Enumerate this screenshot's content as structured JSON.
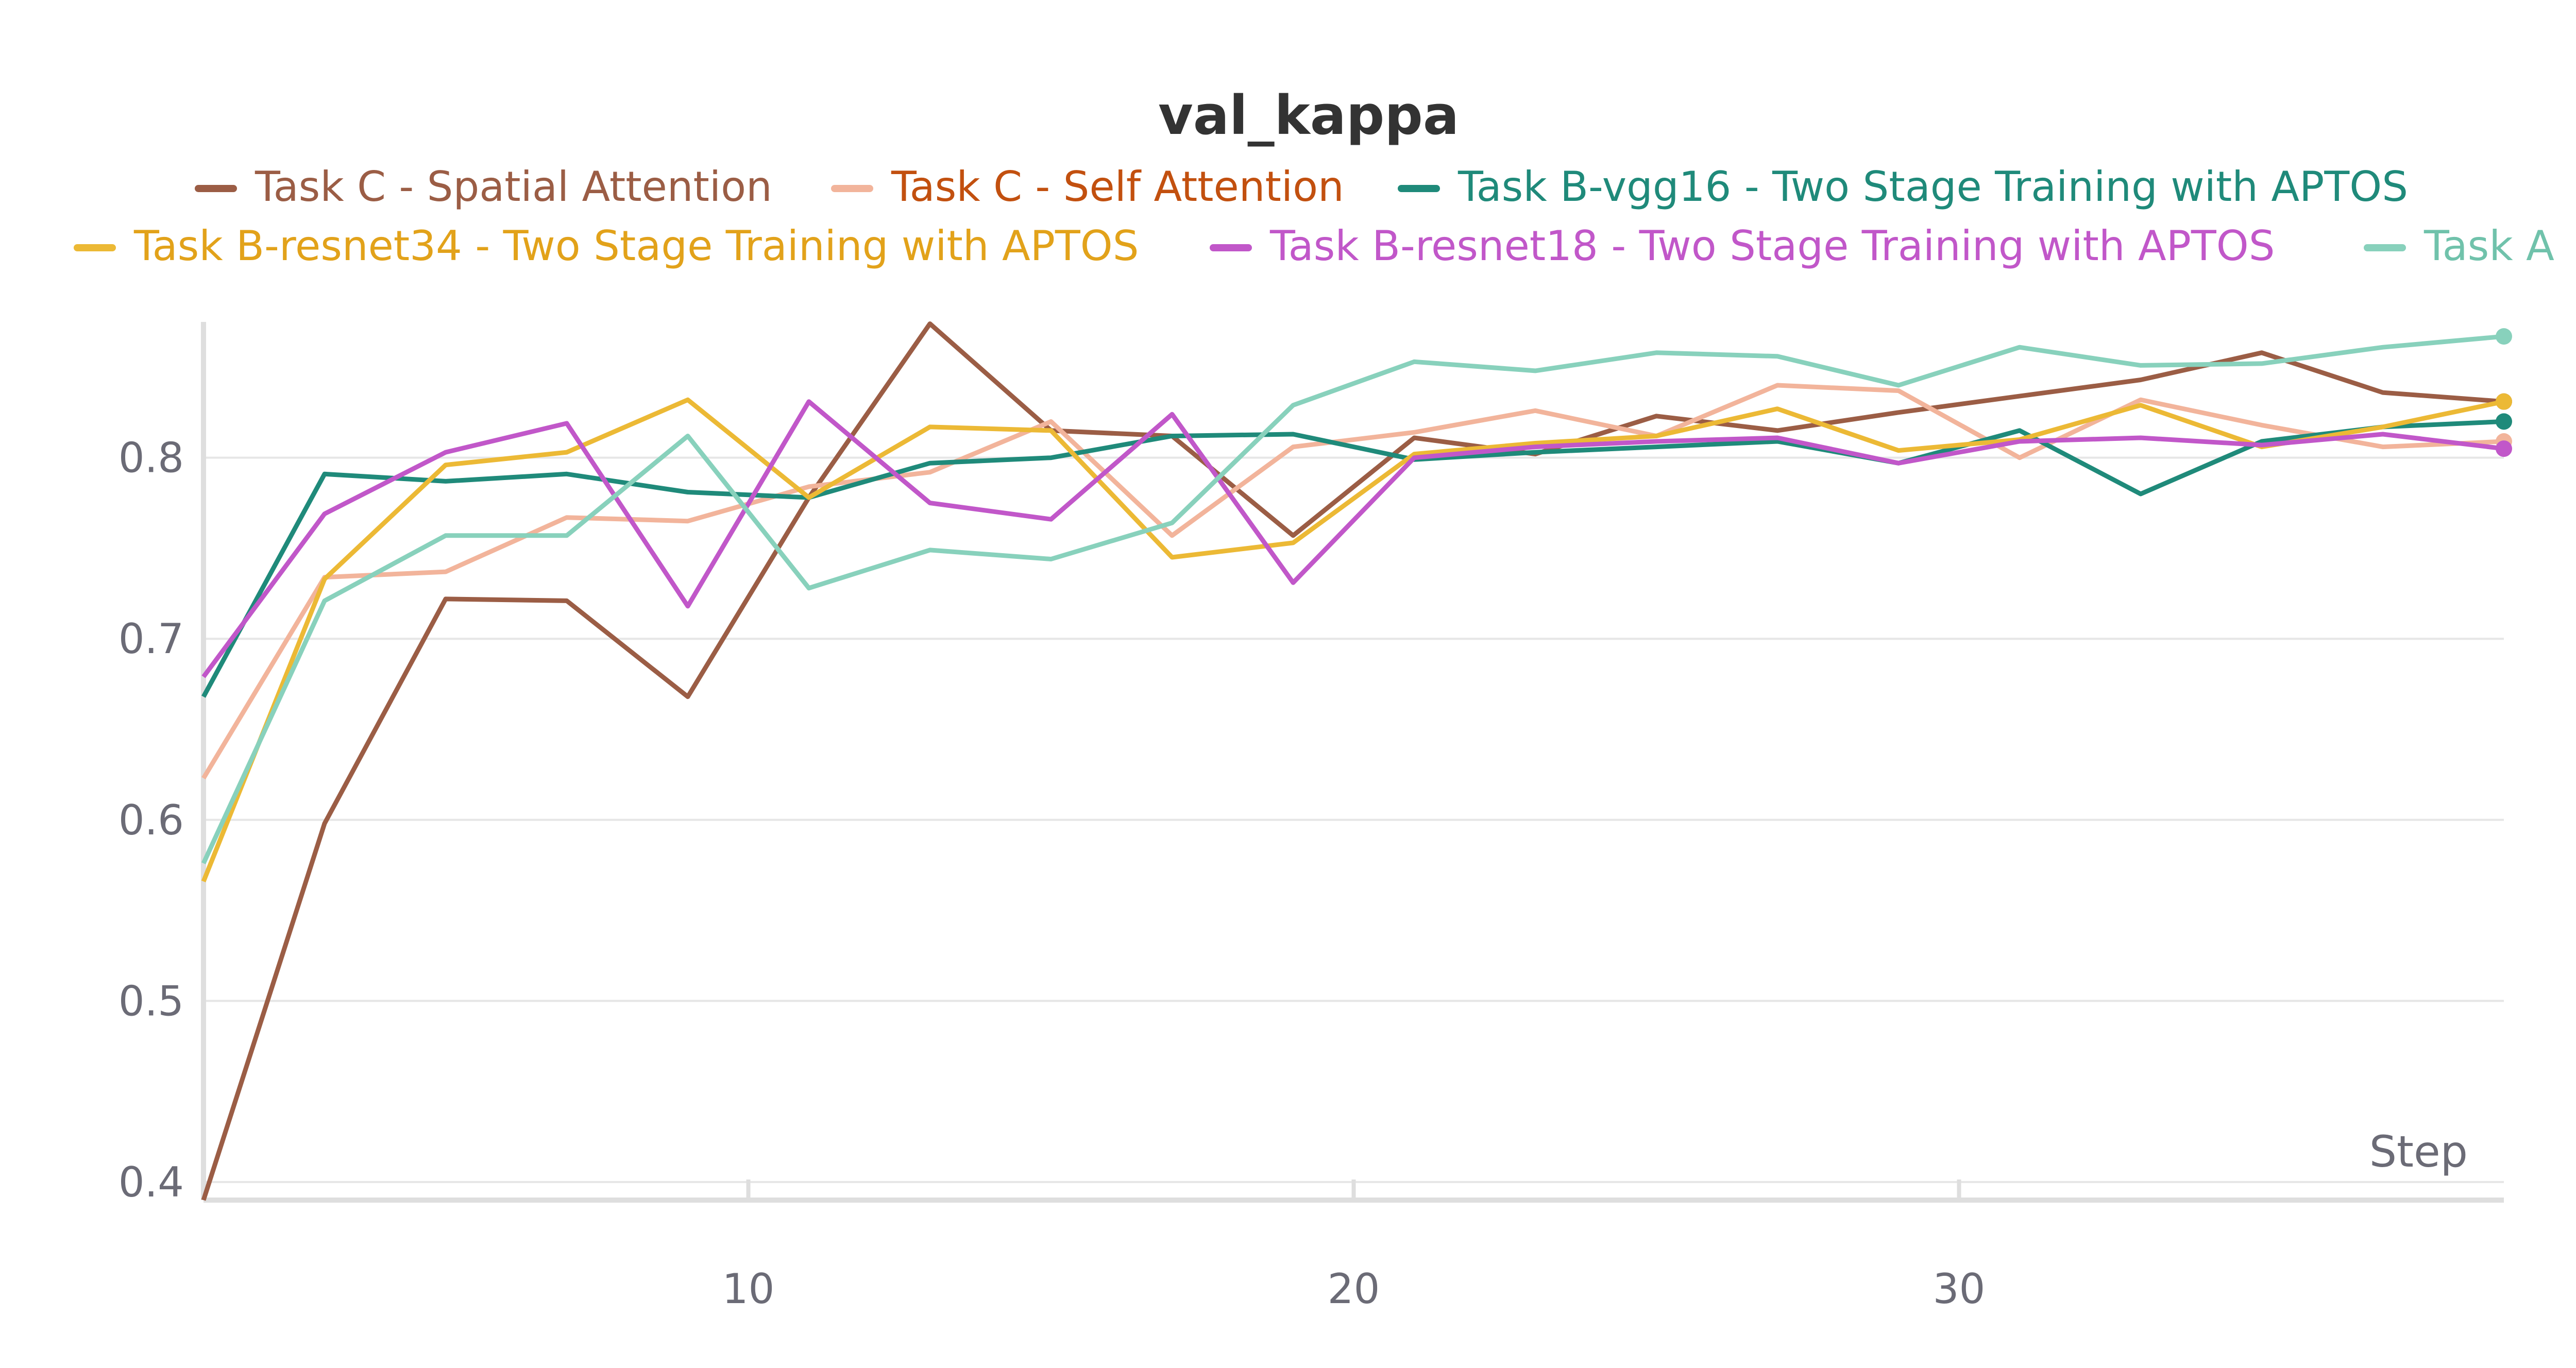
{
  "chart_data": {
    "type": "line",
    "title": "val_kappa",
    "xlabel": "Step",
    "ylabel": "",
    "xlim": [
      1,
      39
    ],
    "ylim": [
      0.39,
      0.875
    ],
    "xticks": [
      10,
      20,
      30
    ],
    "xtick_labels": [
      "10",
      "20",
      "30"
    ],
    "yticks": [
      0.4,
      0.5,
      0.6,
      0.7,
      0.8
    ],
    "ytick_labels": [
      "0.4",
      "0.5",
      "0.6",
      "0.7",
      "0.8"
    ],
    "grid": true,
    "legend_position": "top",
    "x": [
      1,
      3,
      5,
      7,
      9,
      11,
      13,
      15,
      17,
      19,
      21,
      23,
      25,
      27,
      29,
      31,
      33,
      35,
      37,
      39
    ],
    "series": [
      {
        "name": "Task C - Spatial Attention",
        "color": "#9b5d45",
        "label_color": "#9b5d45",
        "values": [
          0.39,
          0.598,
          0.722,
          0.721,
          0.668,
          0.778,
          0.874,
          0.815,
          0.812,
          0.757,
          0.811,
          0.802,
          0.823,
          0.815,
          0.825,
          0.834,
          0.843,
          0.858,
          0.836,
          0.831
        ]
      },
      {
        "name": "Task C - Self Attention",
        "color": "#f2b49b",
        "label_color": "#c2500f",
        "values": [
          0.623,
          0.734,
          0.737,
          0.767,
          0.765,
          0.784,
          0.792,
          0.82,
          0.757,
          0.806,
          0.814,
          0.826,
          0.812,
          0.84,
          0.837,
          0.8,
          0.832,
          0.818,
          0.806,
          0.809
        ]
      },
      {
        "name": "Task B-vgg16 - Two Stage Training with APTOS",
        "color": "#1f8a7a",
        "label_color": "#1f8a7a",
        "values": [
          0.668,
          0.791,
          0.787,
          0.791,
          0.781,
          0.778,
          0.797,
          0.8,
          0.812,
          0.813,
          0.799,
          0.803,
          0.806,
          0.809,
          0.797,
          0.815,
          0.78,
          0.809,
          0.817,
          0.82
        ]
      },
      {
        "name": "Task B-resnet34 - Two Stage Training with APTOS",
        "color": "#ecb935",
        "label_color": "#e2a21a",
        "values": [
          0.566,
          0.733,
          0.796,
          0.803,
          0.832,
          0.778,
          0.817,
          0.815,
          0.745,
          0.753,
          0.802,
          0.808,
          0.812,
          0.827,
          0.804,
          0.81,
          0.829,
          0.806,
          0.817,
          0.831
        ]
      },
      {
        "name": "Task B-resnet18 - Two Stage Training with APTOS",
        "color": "#c157c9",
        "label_color": "#c157c9",
        "values": [
          0.679,
          0.769,
          0.803,
          0.819,
          0.718,
          0.831,
          0.775,
          0.766,
          0.824,
          0.731,
          0.8,
          0.806,
          0.809,
          0.811,
          0.797,
          0.809,
          0.811,
          0.807,
          0.813,
          0.805
        ]
      },
      {
        "name": "Task A",
        "color": "#88d1bc",
        "label_color": "#70c2ab",
        "values": [
          0.576,
          0.721,
          0.757,
          0.757,
          0.812,
          0.728,
          0.749,
          0.744,
          0.764,
          0.829,
          0.853,
          0.848,
          0.858,
          0.856,
          0.84,
          0.861,
          0.851,
          0.852,
          0.861,
          0.867
        ]
      }
    ]
  }
}
